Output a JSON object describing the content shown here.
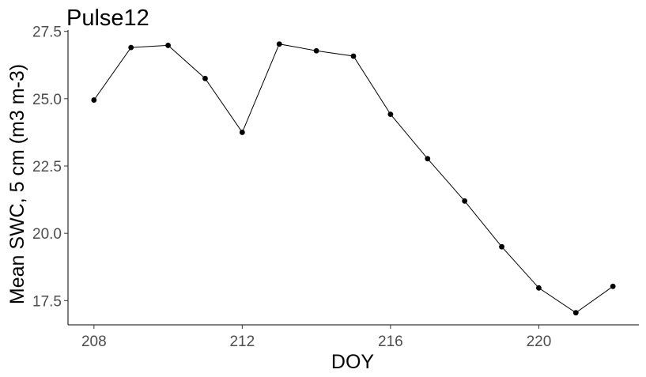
{
  "chart_data": {
    "type": "line",
    "title": "Pulse12",
    "xlabel": "DOY",
    "ylabel": "Mean SWC, 5 cm (m3 m-3)",
    "xlim": [
      207.3,
      222.7
    ],
    "ylim": [
      16.6,
      27.55
    ],
    "x_ticks": [
      208,
      212,
      216,
      220
    ],
    "x_tick_labels": [
      "208",
      "212",
      "216",
      "220"
    ],
    "y_ticks": [
      17.5,
      20.0,
      22.5,
      25.0,
      27.5
    ],
    "y_tick_labels": [
      "17.5",
      "20.0",
      "22.5",
      "25.0",
      "27.5"
    ],
    "grid": false,
    "legend": "none",
    "line_color": "#000000",
    "point_color": "#000000",
    "series": [
      {
        "x": [
          208,
          209,
          210,
          211,
          212,
          213,
          214,
          215,
          216,
          217,
          218,
          219,
          220,
          221,
          222
        ],
        "values": [
          24.95,
          26.9,
          26.98,
          25.75,
          23.75,
          27.03,
          26.78,
          26.58,
          24.42,
          22.77,
          21.2,
          19.5,
          17.97,
          17.05,
          18.03
        ]
      }
    ]
  }
}
